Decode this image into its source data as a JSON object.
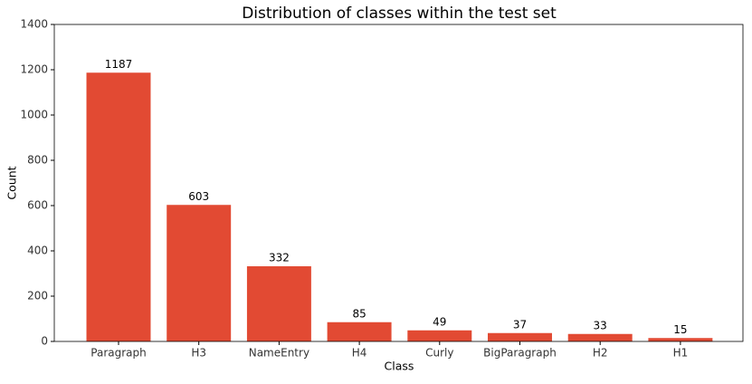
{
  "chart_data": {
    "type": "bar",
    "title": "Distribution of classes within the test set",
    "x_label": "Class",
    "y_label": "Count",
    "categories": [
      "Paragraph",
      "H3",
      "NameEntry",
      "H4",
      "Curly",
      "BigParagraph",
      "H2",
      "H1"
    ],
    "values": [
      1187,
      603,
      332,
      85,
      49,
      37,
      33,
      15
    ],
    "color": "#e24a33",
    "ylim": [
      0,
      1400
    ],
    "yticks": [
      0,
      200,
      400,
      600,
      800,
      1000,
      1200,
      1400
    ]
  }
}
